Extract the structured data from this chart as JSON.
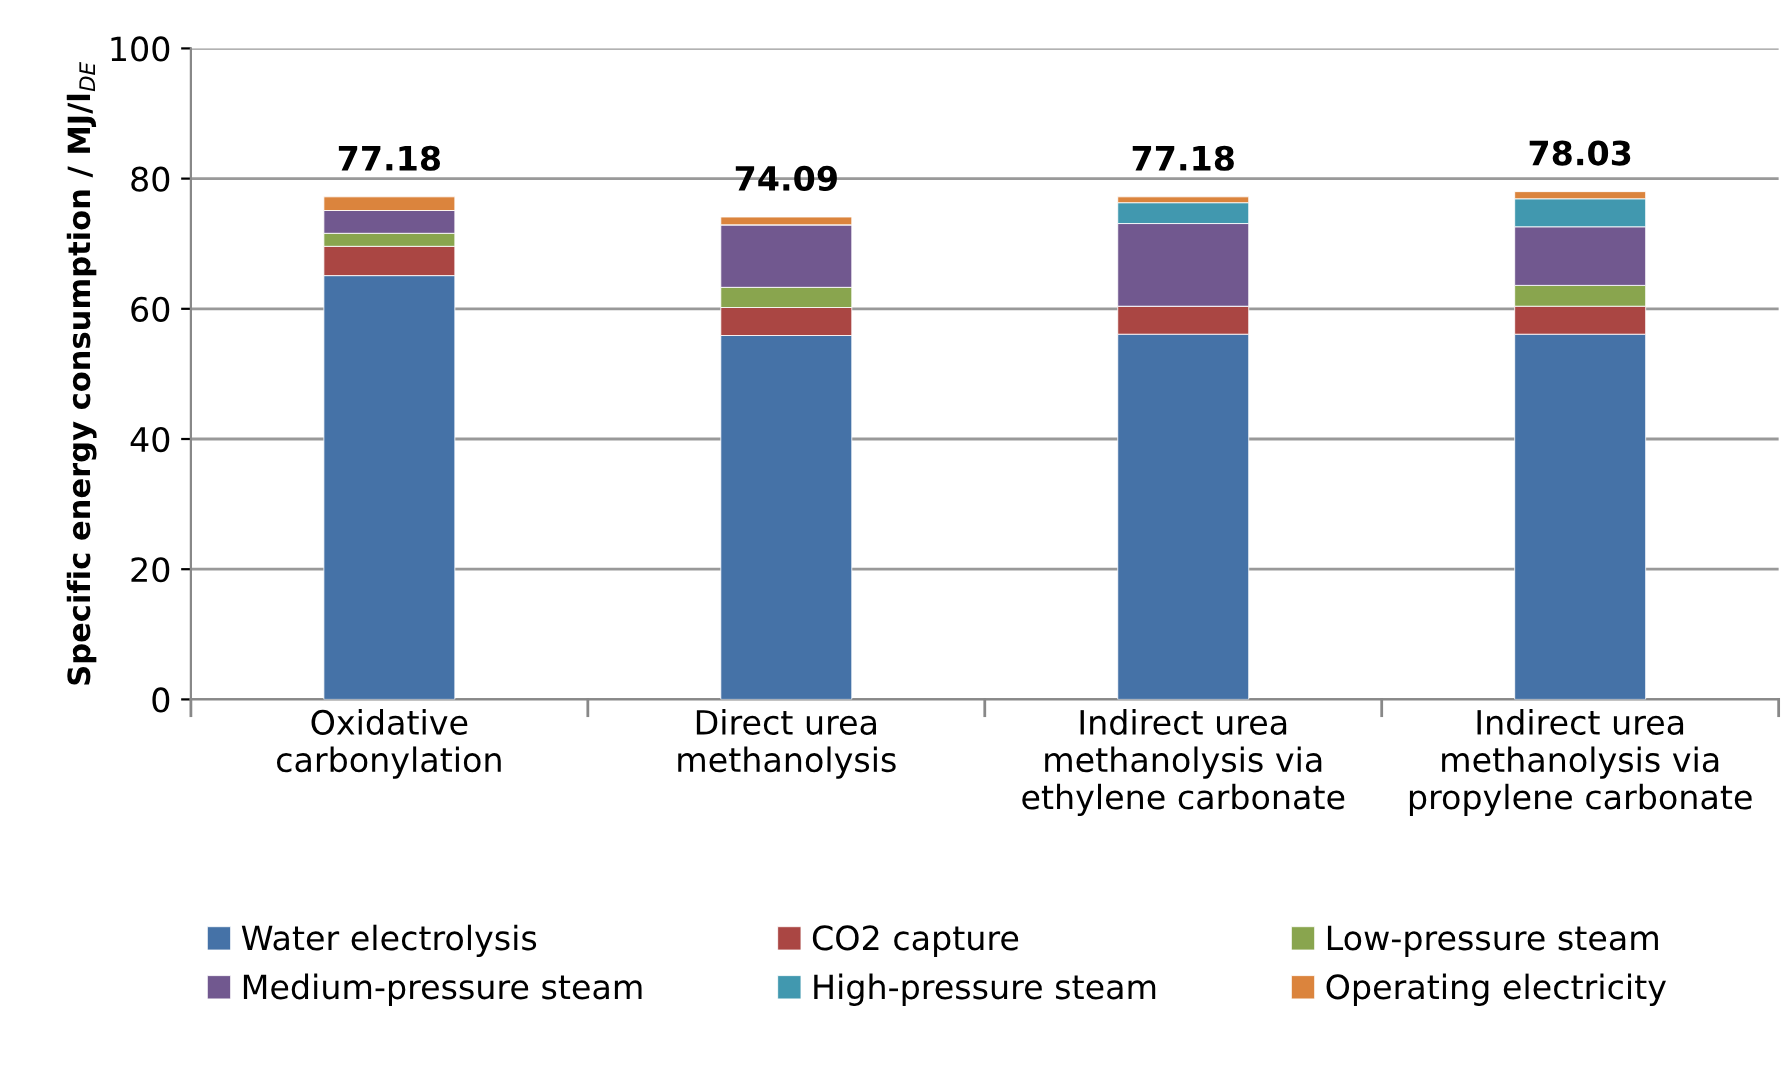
{
  "chart_data": {
    "type": "bar",
    "stacked": true,
    "categories": [
      "Oxidative\ncarbonylation",
      "Direct urea\nmethanolysis",
      "Indirect urea\nmethanolysis via\nethylene carbonate",
      "Indirect urea\nmethanolysis via\npropylene carbonate"
    ],
    "series": [
      {
        "name": "Water electrolysis",
        "color": "#4572a7",
        "values": [
          65.1,
          55.9,
          56.1,
          56.1
        ]
      },
      {
        "name": "CO2 capture",
        "color": "#aa4643",
        "values": [
          4.5,
          4.3,
          4.3,
          4.3
        ]
      },
      {
        "name": "Low-pressure steam",
        "color": "#89a54e",
        "values": [
          2.0,
          3.1,
          0,
          3.2
        ]
      },
      {
        "name": "Medium-pressure steam",
        "color": "#71588f",
        "values": [
          3.5,
          9.6,
          12.7,
          9.0
        ]
      },
      {
        "name": "High-pressure steam",
        "color": "#4198af",
        "values": [
          0,
          0,
          3.2,
          4.3
        ]
      },
      {
        "name": "Operating electricity",
        "color": "#db843d",
        "values": [
          2.1,
          1.2,
          0.9,
          1.1
        ]
      }
    ],
    "totals": [
      "77.18",
      "74.09",
      "77.18",
      "78.03"
    ],
    "ylabel": "Specific energy consumption / MJ/l$_{DE}$",
    "ylim": [
      0,
      100
    ],
    "yticks": [
      0,
      20,
      40,
      60,
      80,
      100
    ],
    "grid": "y",
    "legend": "bottom"
  }
}
